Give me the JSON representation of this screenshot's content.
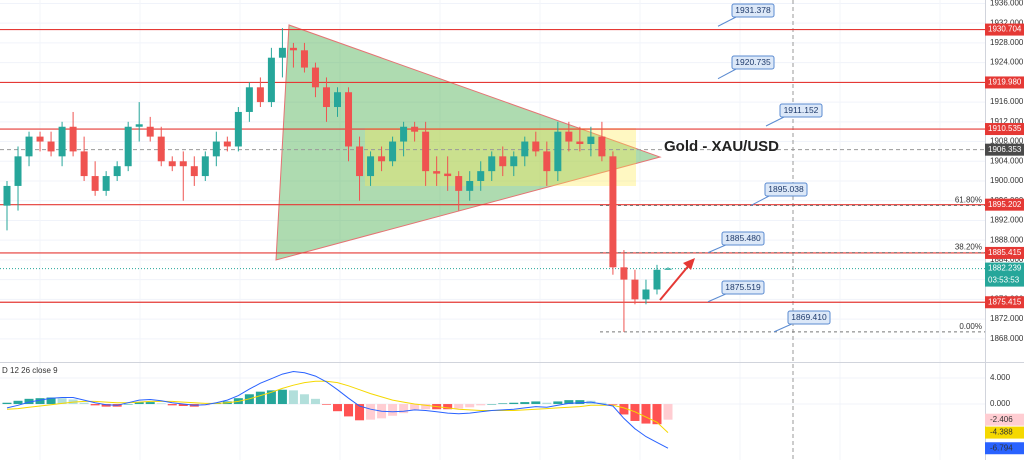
{
  "chart_data": {
    "type": "candlestick",
    "title": "Gold - XAU/USD",
    "up_color": "#26a69a",
    "down_color": "#ef5350",
    "open": [
      1895,
      1899,
      1905,
      1909,
      1908,
      1905,
      1911,
      1906,
      1901,
      1898,
      1901,
      1903,
      1911,
      1911,
      1909,
      1904,
      1904,
      1903,
      1901,
      1905,
      1908,
      1907,
      1914,
      1919,
      1916,
      1925,
      1927,
      1926.5,
      1923,
      1919,
      1915,
      1918,
      1907,
      1901,
      1905,
      1904,
      1908,
      1911,
      1910,
      1902,
      1901.5,
      1901,
      1898,
      1900,
      1902,
      1905,
      1903,
      1905,
      1908,
      1906,
      1902,
      1910,
      1908,
      1907.5,
      1909,
      1905,
      1882.5,
      1880,
      1876,
      1878,
      1882
    ],
    "high": [
      1900,
      1907,
      1910,
      1910,
      1910,
      1912,
      1914,
      1909,
      1904,
      1902,
      1904,
      1912,
      1916,
      1913,
      1911,
      1905,
      1906,
      1905,
      1906,
      1910,
      1909,
      1915,
      1920,
      1921,
      1927,
      1931,
      1928,
      1928,
      1924,
      1921,
      1919,
      1919,
      1909,
      1906,
      1907,
      1909,
      1912,
      1912,
      1912,
      1905,
      1905,
      1902,
      1902,
      1904,
      1906,
      1907,
      1906,
      1909,
      1910,
      1908,
      1912,
      1912,
      1911,
      1911,
      1912,
      1906,
      1886,
      1882,
      1880,
      1883,
      1882.5
    ],
    "low": [
      1890,
      1894,
      1903,
      1906,
      1905,
      1903,
      1905,
      1900,
      1897,
      1897,
      1900,
      1902,
      1908,
      1908,
      1903,
      1902,
      1896,
      1899,
      1900,
      1903,
      1906,
      1906,
      1912,
      1915,
      1915,
      1921,
      1923,
      1922,
      1917,
      1912,
      1913,
      1904,
      1896,
      1899,
      1902,
      1903,
      1905,
      1908,
      1899,
      1899,
      1898,
      1894,
      1896,
      1898,
      1900,
      1901,
      1901,
      1903,
      1905,
      1899,
      1900,
      1906,
      1906,
      1905,
      1904,
      1881,
      1869.4,
      1875,
      1875,
      1877,
      1882
    ],
    "close": [
      1899,
      1905,
      1909,
      1908,
      1906,
      1911,
      1906,
      1901,
      1898,
      1901,
      1903,
      1911,
      1911.5,
      1909,
      1904,
      1903,
      1903,
      1901,
      1905,
      1908,
      1907,
      1914,
      1919,
      1916,
      1925,
      1927,
      1926.5,
      1923,
      1919,
      1915,
      1918,
      1907,
      1901,
      1905,
      1904,
      1908,
      1911,
      1910,
      1902,
      1901.5,
      1901,
      1898,
      1900,
      1902,
      1905,
      1903,
      1905,
      1908,
      1906,
      1902,
      1910,
      1908,
      1907.5,
      1909,
      1905,
      1882.5,
      1880,
      1876,
      1878,
      1882,
      1882.239
    ],
    "ylim": [
      1863.3,
      1936.7
    ],
    "yticks": [
      {
        "value": 1868,
        "label": "1868.000"
      },
      {
        "value": 1872,
        "label": "1872.000"
      },
      {
        "value": 1876,
        "label": "1876.000"
      },
      {
        "value": 1880,
        "label": "1880.000"
      },
      {
        "value": 1884,
        "label": "1884.000"
      },
      {
        "value": 1888,
        "label": "1888.000"
      },
      {
        "value": 1892,
        "label": "1892.000"
      },
      {
        "value": 1896,
        "label": "1896.000"
      },
      {
        "value": 1900,
        "label": "1900.000"
      },
      {
        "value": 1904,
        "label": "1904.000"
      },
      {
        "value": 1908,
        "label": "1908.000"
      },
      {
        "value": 1912,
        "label": "1912.000"
      },
      {
        "value": 1916,
        "label": "1916.000"
      },
      {
        "value": 1920,
        "label": "1920.000"
      },
      {
        "value": 1924,
        "label": "1924.000"
      },
      {
        "value": 1928,
        "label": "1928.000"
      },
      {
        "value": 1932,
        "label": "1932.000"
      },
      {
        "value": 1936,
        "label": "1936.000"
      }
    ],
    "grid": true,
    "level_color": "#e53935",
    "levels": [
      1930.704,
      {
        "value": 1919.98,
        "label": "1919.980"
      },
      1910.535,
      1895.202,
      1885.415,
      1875.415
    ],
    "callouts": [
      1931.378,
      1920.735,
      1911.152,
      1895.038,
      {
        "value": 1885.48,
        "label": "1885.480"
      },
      1875.519,
      {
        "value": 1869.41,
        "label": "1869.410"
      }
    ],
    "fib": [
      {
        "name": "61.80%",
        "price": 1895.038
      },
      {
        "name": "38.20%",
        "price": 1885.48
      },
      {
        "name": "0.00%",
        "price": 1869.41
      }
    ],
    "crosshair": 1906.353,
    "countdown": "03:53:53",
    "macd": {
      "label": "D 12 26 close 9",
      "ylim": [
        -8.6,
        6.46
      ],
      "yticks": [
        {
          "value": 4,
          "label": "4.000"
        },
        {
          "value": 0,
          "label": "0.000"
        }
      ],
      "macd_line": {
        "color": "#2962ff",
        "values": [
          -0.6,
          -0.2,
          0.3,
          0.6,
          0.9,
          1.0,
          1.0,
          0.6,
          0.2,
          -0.1,
          -0.2,
          0.2,
          0.6,
          0.7,
          0.5,
          0.2,
          0.0,
          -0.2,
          -0.1,
          0.2,
          0.6,
          1.3,
          2.3,
          3.2,
          3.9,
          4.6,
          5.0,
          4.8,
          4.3,
          3.4,
          2.2,
          0.9,
          -0.3,
          -0.8,
          -1.1,
          -1.2,
          -1.1,
          -0.9,
          -1.0,
          -1.2,
          -1.4,
          -1.5,
          -1.4,
          -1.2,
          -1.0,
          -0.9,
          -0.8,
          -0.6,
          -0.4,
          -0.5,
          -0.2,
          0.1,
          0.2,
          0.3,
          0.0,
          -0.3,
          -2.2,
          -3.8,
          -5.0,
          -5.9,
          -6.794
        ]
      },
      "signal_line": {
        "color": "#f5d800",
        "values": [
          -0.8,
          -0.7,
          -0.5,
          -0.3,
          -0.1,
          0.1,
          0.3,
          0.4,
          0.4,
          0.3,
          0.2,
          0.2,
          0.3,
          0.4,
          0.4,
          0.4,
          0.3,
          0.2,
          0.1,
          0.1,
          0.2,
          0.4,
          0.8,
          1.3,
          1.8,
          2.4,
          2.9,
          3.3,
          3.5,
          3.5,
          3.3,
          2.8,
          2.2,
          1.6,
          1.1,
          0.6,
          0.3,
          0.0,
          -0.2,
          -0.4,
          -0.6,
          -0.8,
          -0.9,
          -1.0,
          -1.0,
          -1.0,
          -1.0,
          -0.9,
          -0.8,
          -0.7,
          -0.6,
          -0.5,
          -0.4,
          -0.2,
          -0.2,
          -0.2,
          -0.6,
          -1.2,
          -2.0,
          -2.8,
          -4.388
        ]
      },
      "histogram": {
        "colors": [
          "#26a69a",
          "#b2dfdb",
          "#ff5252",
          "#ffcdd2"
        ],
        "values": [
          0.2,
          0.5,
          0.8,
          0.9,
          1.0,
          0.9,
          0.7,
          0.2,
          -0.2,
          -0.4,
          -0.4,
          0.0,
          0.3,
          0.3,
          0.1,
          -0.2,
          -0.3,
          -0.4,
          -0.2,
          0.1,
          0.4,
          0.9,
          1.5,
          1.9,
          2.1,
          2.2,
          2.1,
          1.5,
          0.8,
          -0.1,
          -1.1,
          -1.9,
          -2.5,
          -2.4,
          -2.2,
          -1.8,
          -1.4,
          -0.9,
          -0.8,
          -0.8,
          -0.8,
          -0.7,
          -0.5,
          -0.2,
          0.0,
          0.1,
          0.2,
          0.3,
          0.4,
          0.2,
          0.4,
          0.6,
          0.6,
          0.5,
          0.2,
          -0.1,
          -1.6,
          -2.6,
          -3.0,
          -3.1,
          -2.406
        ]
      }
    }
  }
}
